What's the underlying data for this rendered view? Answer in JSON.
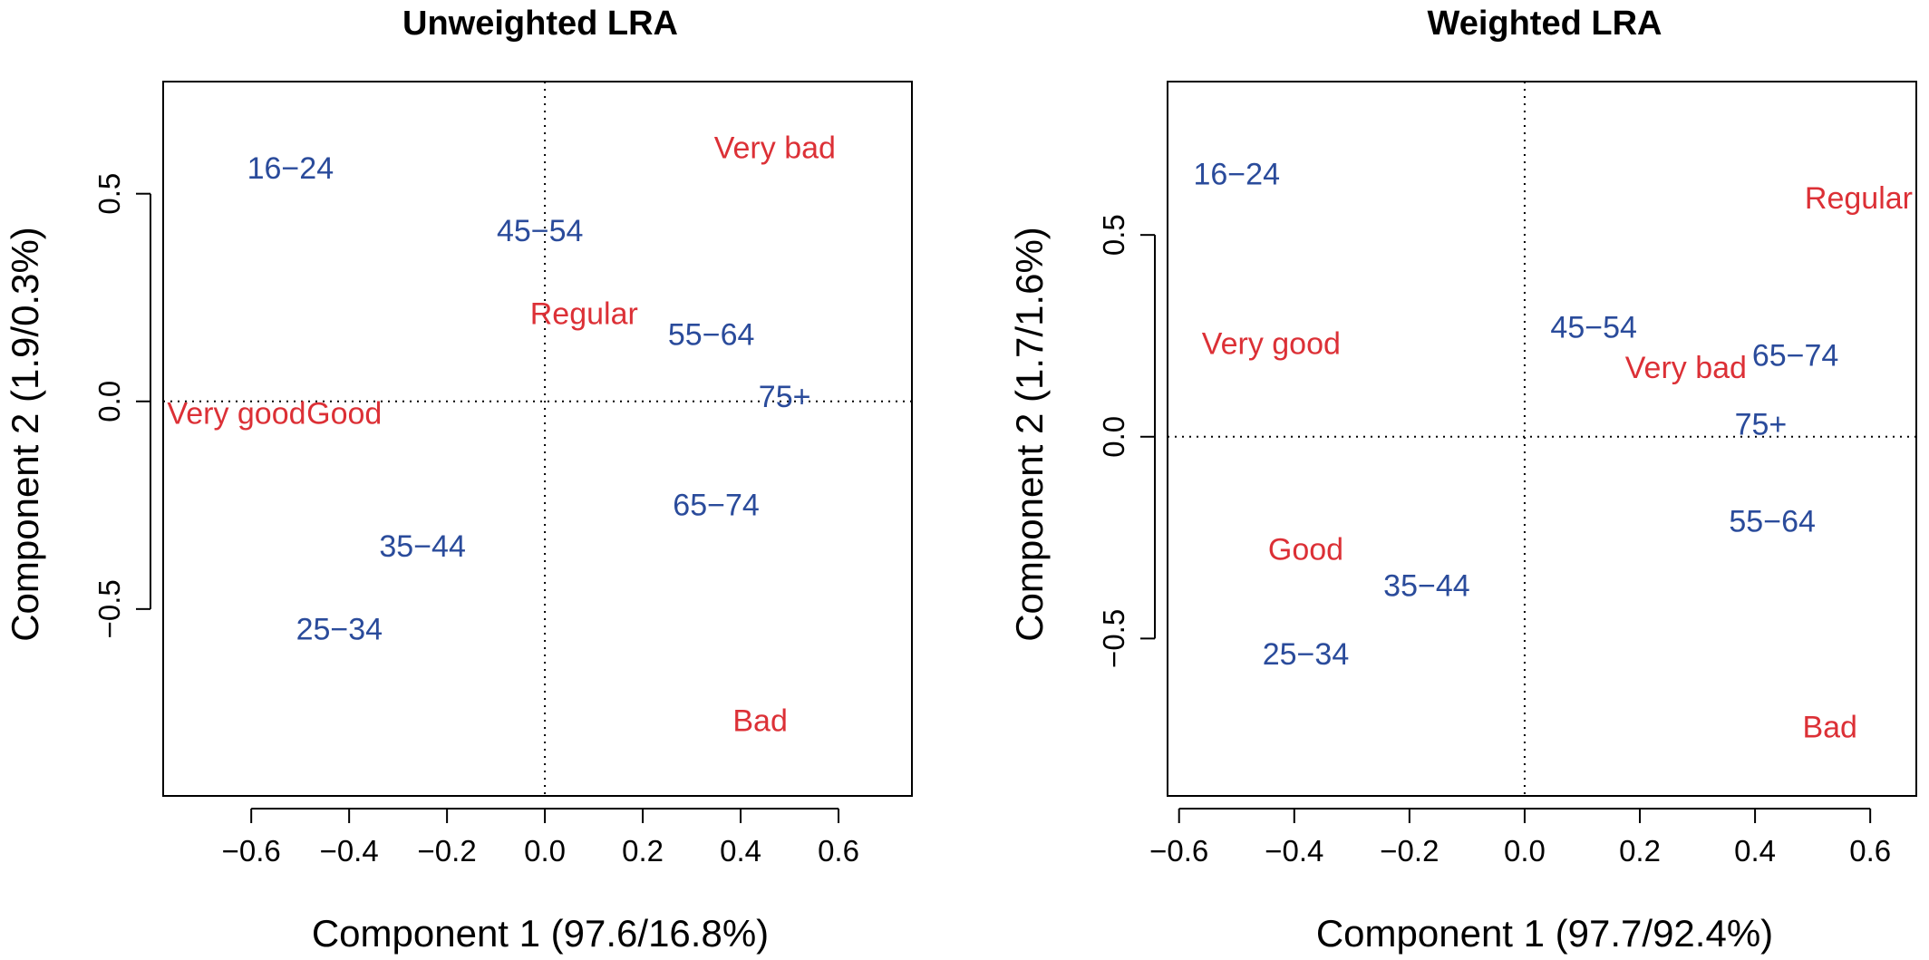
{
  "figure": {
    "colors": {
      "age_group": "#2a4b9b",
      "health_category": "#dc3036",
      "axes": "#000000"
    }
  },
  "chart_data": [
    {
      "type": "scatter",
      "title": "Unweighted LRA",
      "xlabel": "Component 1 (97.6/16.8%)",
      "ylabel": "Component 2 (1.9/0.3%)",
      "xlim": [
        -0.78,
        0.75
      ],
      "ylim": [
        -0.95,
        0.77
      ],
      "x_ticks": [
        -0.6,
        -0.4,
        -0.2,
        0.0,
        0.2,
        0.4,
        0.6
      ],
      "y_ticks": [
        -0.5,
        0.0,
        0.5
      ],
      "x_tick_labels": [
        "−0.6",
        "−0.4",
        "−0.2",
        "0.0",
        "0.2",
        "0.4",
        "0.6"
      ],
      "y_tick_labels": [
        "−0.5",
        "0.0",
        "0.5"
      ],
      "reference_lines": {
        "x": 0,
        "y": 0,
        "style": "dotted"
      },
      "grid": false,
      "series": [
        {
          "group": "age",
          "color": "#2a4b9b",
          "points": [
            {
              "label": "16−24",
              "x": -0.52,
              "y": 0.56
            },
            {
              "label": "45−54",
              "x": -0.01,
              "y": 0.41
            },
            {
              "label": "55−64",
              "x": 0.34,
              "y": 0.16
            },
            {
              "label": "75+",
              "x": 0.49,
              "y": 0.01
            },
            {
              "label": "65−74",
              "x": 0.35,
              "y": -0.25
            },
            {
              "label": "35−44",
              "x": -0.25,
              "y": -0.35
            },
            {
              "label": "25−34",
              "x": -0.42,
              "y": -0.55
            }
          ]
        },
        {
          "group": "health",
          "color": "#dc3036",
          "points": [
            {
              "label": "Very bad",
              "x": 0.47,
              "y": 0.61
            },
            {
              "label": "Regular",
              "x": 0.08,
              "y": 0.21
            },
            {
              "label": "Very good",
              "x": -0.63,
              "y": -0.03
            },
            {
              "label": "Good",
              "x": -0.41,
              "y": -0.03
            },
            {
              "label": "Bad",
              "x": 0.44,
              "y": -0.77
            }
          ]
        }
      ]
    },
    {
      "type": "scatter",
      "title": "Weighted LRA",
      "xlabel": "Component 1 (97.7/92.4%)",
      "ylabel": "Component 2 (1.7/1.6%)",
      "xlim": [
        -0.62,
        0.68
      ],
      "ylim": [
        -0.89,
        0.88
      ],
      "x_ticks": [
        -0.6,
        -0.4,
        -0.2,
        0.0,
        0.2,
        0.4,
        0.6
      ],
      "y_ticks": [
        -0.5,
        0.0,
        0.5
      ],
      "x_tick_labels": [
        "−0.6",
        "−0.4",
        "−0.2",
        "0.0",
        "0.2",
        "0.4",
        "0.6"
      ],
      "y_tick_labels": [
        "−0.5",
        "0.0",
        "0.5"
      ],
      "reference_lines": {
        "x": 0,
        "y": 0,
        "style": "dotted"
      },
      "grid": false,
      "series": [
        {
          "group": "age",
          "color": "#2a4b9b",
          "points": [
            {
              "label": "16−24",
              "x": -0.5,
              "y": 0.65
            },
            {
              "label": "45−54",
              "x": 0.12,
              "y": 0.27
            },
            {
              "label": "65−74",
              "x": 0.47,
              "y": 0.2
            },
            {
              "label": "75+",
              "x": 0.41,
              "y": 0.03
            },
            {
              "label": "55−64",
              "x": 0.43,
              "y": -0.21
            },
            {
              "label": "35−44",
              "x": -0.17,
              "y": -0.37
            },
            {
              "label": "25−34",
              "x": -0.38,
              "y": -0.54
            }
          ]
        },
        {
          "group": "health",
          "color": "#dc3036",
          "points": [
            {
              "label": "Regular",
              "x": 0.58,
              "y": 0.59
            },
            {
              "label": "Very good",
              "x": -0.44,
              "y": 0.23
            },
            {
              "label": "Very bad",
              "x": 0.28,
              "y": 0.17
            },
            {
              "label": "Good",
              "x": -0.38,
              "y": -0.28
            },
            {
              "label": "Bad",
              "x": 0.53,
              "y": -0.72
            }
          ]
        }
      ]
    }
  ]
}
